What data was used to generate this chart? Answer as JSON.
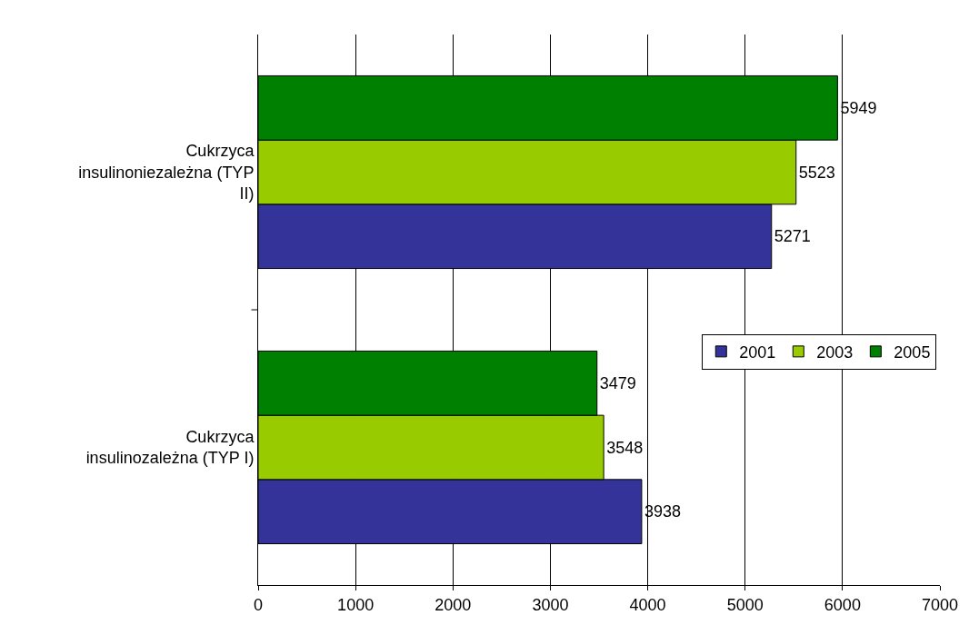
{
  "chart_data": {
    "type": "bar",
    "orientation": "horizontal",
    "categories": [
      "Cukrzyca insulinoniezależna (TYP II)",
      "Cukrzyca insulinozależna (TYP I)"
    ],
    "series": [
      {
        "name": "2001",
        "color": "#333399",
        "values": [
          5271,
          3938
        ]
      },
      {
        "name": "2003",
        "color": "#99cc00",
        "values": [
          5523,
          3548
        ]
      },
      {
        "name": "2005",
        "color": "#008000",
        "values": [
          5949,
          3479
        ]
      }
    ],
    "xlim": [
      0,
      7000
    ],
    "xticks": [
      0,
      1000,
      2000,
      3000,
      4000,
      5000,
      6000,
      7000
    ],
    "grid": "x",
    "legend": "right",
    "data_labels": true
  }
}
